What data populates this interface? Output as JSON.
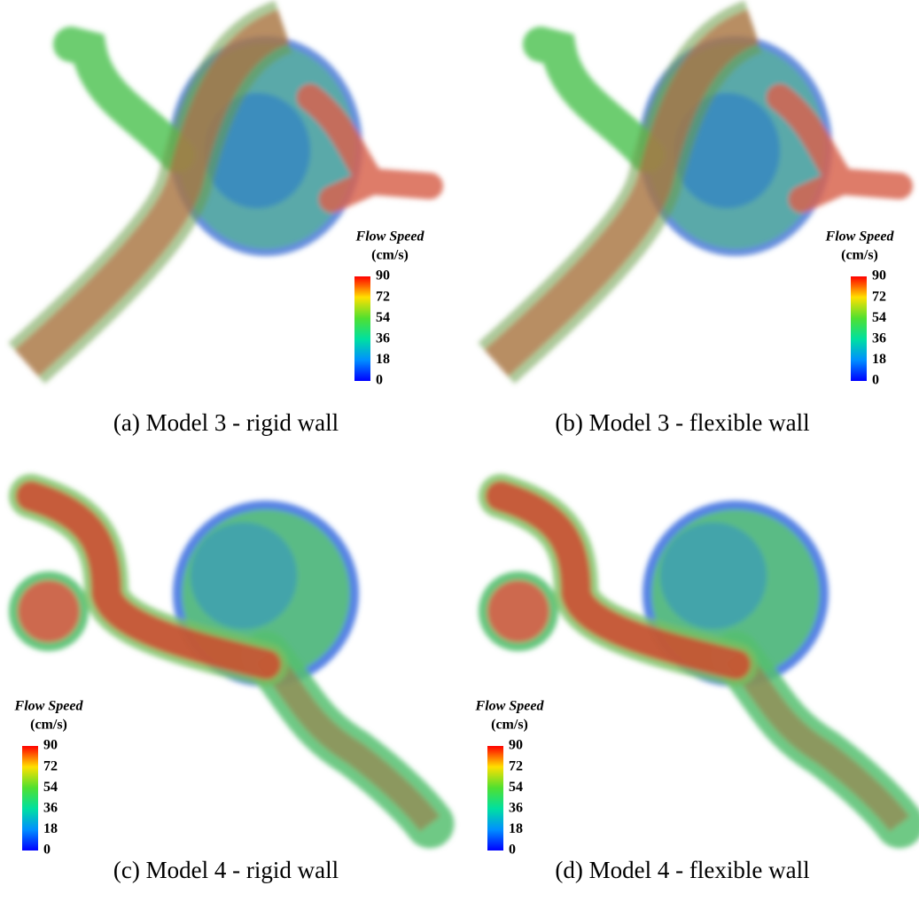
{
  "panels": [
    {
      "caption": "(a) Model 3 - rigid wall",
      "legend": {
        "title": "Flow Speed",
        "unit": "(cm/s)",
        "ticks": [
          90,
          72,
          54,
          36,
          18,
          0
        ]
      }
    },
    {
      "caption": "(b) Model 3 - flexible wall",
      "legend": {
        "title": "Flow Speed",
        "unit": "(cm/s)",
        "ticks": [
          90,
          72,
          54,
          36,
          18,
          0
        ]
      }
    },
    {
      "caption": "(c) Model 4 - rigid wall",
      "legend": {
        "title": "Flow Speed",
        "unit": "(cm/s)",
        "ticks": [
          90,
          72,
          54,
          36,
          18,
          0
        ]
      }
    },
    {
      "caption": "(d) Model 4 - flexible wall",
      "legend": {
        "title": "Flow Speed",
        "unit": "(cm/s)",
        "ticks": [
          90,
          72,
          54,
          36,
          18,
          0
        ]
      }
    }
  ]
}
